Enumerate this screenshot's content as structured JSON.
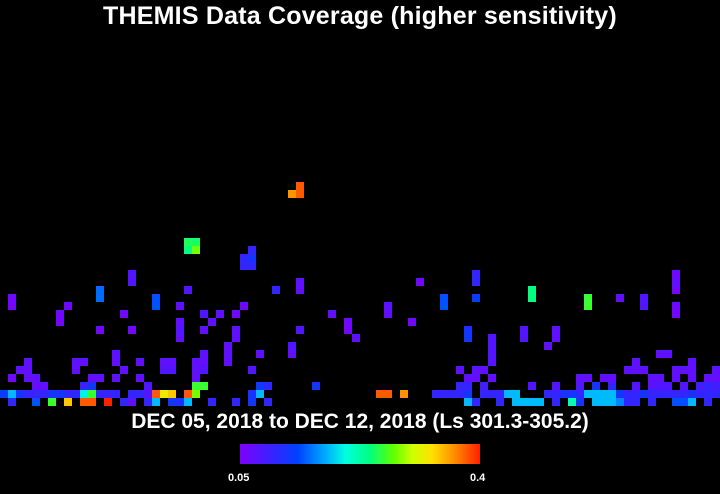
{
  "title": "THEMIS Data Coverage (higher sensitivity)",
  "subtitle": "DEC 05, 2018 to DEC 12, 2018 (Ls 301.3-305.2)",
  "colorbar": {
    "min_label": "0.05",
    "max_label": "0.4",
    "min": 0.05,
    "max": 0.4
  },
  "chart_data": {
    "type": "heatmap",
    "title": "THEMIS Data Coverage (higher sensitivity)",
    "subtitle": "DEC 05, 2018 to DEC 12, 2018 (Ls 301.3-305.2)",
    "value_range": [
      0.05,
      0.4
    ],
    "grid": {
      "cols": 90,
      "rows": 50
    },
    "cells": [
      [
        36,
        23,
        0.36
      ],
      [
        37,
        22,
        0.38
      ],
      [
        37,
        23,
        0.38
      ],
      [
        23,
        29,
        0.25
      ],
      [
        24,
        29,
        0.25
      ],
      [
        23,
        30,
        0.24
      ],
      [
        24,
        30,
        0.28
      ],
      [
        31,
        30,
        0.1
      ],
      [
        30,
        31,
        0.1
      ],
      [
        31,
        31,
        0.12
      ],
      [
        30,
        32,
        0.1
      ],
      [
        31,
        32,
        0.1
      ],
      [
        16,
        33,
        0.08
      ],
      [
        59,
        33,
        0.1
      ],
      [
        84,
        33,
        0.06
      ],
      [
        16,
        34,
        0.08
      ],
      [
        59,
        34,
        0.1
      ],
      [
        84,
        34,
        0.07
      ],
      [
        34,
        35,
        0.1
      ],
      [
        52,
        34,
        0.06
      ],
      [
        37,
        34,
        0.07
      ],
      [
        37,
        35,
        0.07
      ],
      [
        12,
        35,
        0.15
      ],
      [
        23,
        35,
        0.08
      ],
      [
        66,
        35,
        0.24
      ],
      [
        84,
        35,
        0.06
      ],
      [
        1,
        36,
        0.06
      ],
      [
        12,
        36,
        0.15
      ],
      [
        19,
        36,
        0.14
      ],
      [
        55,
        36,
        0.14
      ],
      [
        59,
        36,
        0.13
      ],
      [
        66,
        36,
        0.24
      ],
      [
        73,
        36,
        0.26
      ],
      [
        77,
        36,
        0.07
      ],
      [
        80,
        36,
        0.08
      ],
      [
        1,
        37,
        0.06
      ],
      [
        8,
        37,
        0.06
      ],
      [
        19,
        37,
        0.14
      ],
      [
        22,
        37,
        0.07
      ],
      [
        30,
        37,
        0.06
      ],
      [
        48,
        37,
        0.07
      ],
      [
        55,
        37,
        0.14
      ],
      [
        73,
        37,
        0.26
      ],
      [
        80,
        37,
        0.08
      ],
      [
        84,
        37,
        0.06
      ],
      [
        7,
        38,
        0.06
      ],
      [
        15,
        38,
        0.06
      ],
      [
        25,
        38,
        0.08
      ],
      [
        27,
        38,
        0.07
      ],
      [
        29,
        38,
        0.06
      ],
      [
        41,
        38,
        0.07
      ],
      [
        48,
        38,
        0.07
      ],
      [
        84,
        38,
        0.06
      ],
      [
        7,
        39,
        0.06
      ],
      [
        22,
        39,
        0.07
      ],
      [
        26,
        39,
        0.07
      ],
      [
        43,
        39,
        0.06
      ],
      [
        51,
        39,
        0.06
      ],
      [
        12,
        40,
        0.06
      ],
      [
        16,
        40,
        0.06
      ],
      [
        22,
        40,
        0.08
      ],
      [
        25,
        40,
        0.07
      ],
      [
        29,
        40,
        0.07
      ],
      [
        37,
        40,
        0.08
      ],
      [
        43,
        40,
        0.06
      ],
      [
        58,
        40,
        0.12
      ],
      [
        65,
        40,
        0.08
      ],
      [
        69,
        40,
        0.07
      ],
      [
        22,
        41,
        0.07
      ],
      [
        29,
        41,
        0.07
      ],
      [
        44,
        41,
        0.07
      ],
      [
        58,
        41,
        0.12
      ],
      [
        61,
        41,
        0.08
      ],
      [
        65,
        41,
        0.08
      ],
      [
        69,
        41,
        0.07
      ],
      [
        28,
        42,
        0.07
      ],
      [
        36,
        42,
        0.08
      ],
      [
        61,
        42,
        0.08
      ],
      [
        68,
        42,
        0.07
      ],
      [
        14,
        43,
        0.07
      ],
      [
        25,
        43,
        0.07
      ],
      [
        28,
        43,
        0.07
      ],
      [
        32,
        43,
        0.07
      ],
      [
        36,
        43,
        0.07
      ],
      [
        61,
        43,
        0.08
      ],
      [
        82,
        43,
        0.07
      ],
      [
        83,
        43,
        0.07
      ],
      [
        3,
        44,
        0.07
      ],
      [
        9,
        44,
        0.07
      ],
      [
        10,
        44,
        0.07
      ],
      [
        14,
        44,
        0.07
      ],
      [
        17,
        44,
        0.07
      ],
      [
        20,
        44,
        0.07
      ],
      [
        21,
        44,
        0.07
      ],
      [
        24,
        44,
        0.07
      ],
      [
        25,
        44,
        0.07
      ],
      [
        28,
        44,
        0.07
      ],
      [
        61,
        44,
        0.08
      ],
      [
        79,
        44,
        0.07
      ],
      [
        86,
        44,
        0.07
      ],
      [
        2,
        45,
        0.07
      ],
      [
        3,
        45,
        0.07
      ],
      [
        9,
        45,
        0.07
      ],
      [
        15,
        45,
        0.07
      ],
      [
        20,
        45,
        0.08
      ],
      [
        21,
        45,
        0.08
      ],
      [
        24,
        45,
        0.07
      ],
      [
        25,
        45,
        0.08
      ],
      [
        31,
        45,
        0.08
      ],
      [
        57,
        45,
        0.07
      ],
      [
        59,
        45,
        0.07
      ],
      [
        60,
        45,
        0.07
      ],
      [
        78,
        45,
        0.07
      ],
      [
        79,
        45,
        0.07
      ],
      [
        80,
        45,
        0.07
      ],
      [
        84,
        45,
        0.07
      ],
      [
        85,
        45,
        0.07
      ],
      [
        86,
        45,
        0.07
      ],
      [
        89,
        45,
        0.07
      ],
      [
        1,
        46,
        0.06
      ],
      [
        3,
        46,
        0.07
      ],
      [
        4,
        46,
        0.07
      ],
      [
        11,
        46,
        0.07
      ],
      [
        12,
        46,
        0.07
      ],
      [
        14,
        46,
        0.07
      ],
      [
        17,
        46,
        0.07
      ],
      [
        24,
        46,
        0.07
      ],
      [
        58,
        46,
        0.07
      ],
      [
        59,
        46,
        0.07
      ],
      [
        61,
        46,
        0.07
      ],
      [
        72,
        46,
        0.07
      ],
      [
        73,
        46,
        0.07
      ],
      [
        75,
        46,
        0.07
      ],
      [
        76,
        46,
        0.07
      ],
      [
        81,
        46,
        0.07
      ],
      [
        82,
        46,
        0.07
      ],
      [
        84,
        46,
        0.07
      ],
      [
        86,
        46,
        0.07
      ],
      [
        88,
        46,
        0.07
      ],
      [
        89,
        46,
        0.07
      ],
      [
        4,
        47,
        0.07
      ],
      [
        5,
        47,
        0.07
      ],
      [
        10,
        47,
        0.1
      ],
      [
        11,
        47,
        0.12
      ],
      [
        18,
        47,
        0.08
      ],
      [
        24,
        47,
        0.26
      ],
      [
        25,
        47,
        0.26
      ],
      [
        32,
        47,
        0.13
      ],
      [
        33,
        47,
        0.1
      ],
      [
        39,
        47,
        0.12
      ],
      [
        57,
        47,
        0.1
      ],
      [
        58,
        47,
        0.1
      ],
      [
        60,
        47,
        0.09
      ],
      [
        66,
        47,
        0.08
      ],
      [
        69,
        47,
        0.08
      ],
      [
        72,
        47,
        0.08
      ],
      [
        74,
        47,
        0.12
      ],
      [
        76,
        47,
        0.1
      ],
      [
        79,
        47,
        0.08
      ],
      [
        81,
        47,
        0.08
      ],
      [
        82,
        47,
        0.08
      ],
      [
        83,
        47,
        0.08
      ],
      [
        85,
        47,
        0.08
      ],
      [
        87,
        47,
        0.09
      ],
      [
        88,
        47,
        0.1
      ],
      [
        89,
        47,
        0.09
      ],
      [
        0,
        48,
        0.13
      ],
      [
        1,
        48,
        0.18
      ],
      [
        2,
        48,
        0.12
      ],
      [
        3,
        48,
        0.1
      ],
      [
        4,
        48,
        0.1
      ],
      [
        5,
        48,
        0.1
      ],
      [
        6,
        48,
        0.12
      ],
      [
        7,
        48,
        0.12
      ],
      [
        8,
        48,
        0.1
      ],
      [
        9,
        48,
        0.1
      ],
      [
        10,
        48,
        0.2
      ],
      [
        11,
        48,
        0.26
      ],
      [
        12,
        48,
        0.1
      ],
      [
        13,
        48,
        0.1
      ],
      [
        14,
        48,
        0.1
      ],
      [
        16,
        48,
        0.1
      ],
      [
        17,
        48,
        0.1
      ],
      [
        18,
        48,
        0.08
      ],
      [
        19,
        48,
        0.38
      ],
      [
        20,
        48,
        0.32
      ],
      [
        21,
        48,
        0.34
      ],
      [
        23,
        48,
        0.38
      ],
      [
        24,
        48,
        0.28
      ],
      [
        31,
        48,
        0.12
      ],
      [
        32,
        48,
        0.18
      ],
      [
        47,
        48,
        0.38
      ],
      [
        48,
        48,
        0.38
      ],
      [
        50,
        48,
        0.36
      ],
      [
        54,
        48,
        0.1
      ],
      [
        55,
        48,
        0.1
      ],
      [
        56,
        48,
        0.1
      ],
      [
        57,
        48,
        0.1
      ],
      [
        58,
        48,
        0.12
      ],
      [
        60,
        48,
        0.1
      ],
      [
        61,
        48,
        0.1
      ],
      [
        62,
        48,
        0.1
      ],
      [
        63,
        48,
        0.18
      ],
      [
        64,
        48,
        0.18
      ],
      [
        68,
        48,
        0.1
      ],
      [
        69,
        48,
        0.1
      ],
      [
        70,
        48,
        0.12
      ],
      [
        71,
        48,
        0.12
      ],
      [
        72,
        48,
        0.1
      ],
      [
        73,
        48,
        0.18
      ],
      [
        74,
        48,
        0.18
      ],
      [
        75,
        48,
        0.18
      ],
      [
        76,
        48,
        0.18
      ],
      [
        77,
        48,
        0.12
      ],
      [
        78,
        48,
        0.1
      ],
      [
        79,
        48,
        0.1
      ],
      [
        80,
        48,
        0.12
      ],
      [
        81,
        48,
        0.1
      ],
      [
        82,
        48,
        0.1
      ],
      [
        83,
        48,
        0.1
      ],
      [
        84,
        48,
        0.1
      ],
      [
        85,
        48,
        0.1
      ],
      [
        86,
        48,
        0.12
      ],
      [
        87,
        48,
        0.1
      ],
      [
        88,
        48,
        0.1
      ],
      [
        89,
        48,
        0.1
      ],
      [
        1,
        49,
        0.1
      ],
      [
        4,
        49,
        0.14
      ],
      [
        6,
        49,
        0.26
      ],
      [
        8,
        49,
        0.34
      ],
      [
        10,
        49,
        0.38
      ],
      [
        11,
        49,
        0.38
      ],
      [
        13,
        49,
        0.4
      ],
      [
        15,
        49,
        0.1
      ],
      [
        16,
        49,
        0.07
      ],
      [
        18,
        49,
        0.1
      ],
      [
        19,
        49,
        0.18
      ],
      [
        21,
        49,
        0.12
      ],
      [
        22,
        49,
        0.12
      ],
      [
        23,
        49,
        0.18
      ],
      [
        26,
        49,
        0.1
      ],
      [
        29,
        49,
        0.1
      ],
      [
        31,
        49,
        0.12
      ],
      [
        33,
        49,
        0.1
      ],
      [
        58,
        49,
        0.18
      ],
      [
        59,
        49,
        0.1
      ],
      [
        62,
        49,
        0.1
      ],
      [
        64,
        49,
        0.18
      ],
      [
        65,
        49,
        0.18
      ],
      [
        66,
        49,
        0.18
      ],
      [
        67,
        49,
        0.18
      ],
      [
        69,
        49,
        0.1
      ],
      [
        71,
        49,
        0.22
      ],
      [
        72,
        49,
        0.12
      ],
      [
        74,
        49,
        0.18
      ],
      [
        75,
        49,
        0.18
      ],
      [
        76,
        49,
        0.18
      ],
      [
        77,
        49,
        0.16
      ],
      [
        78,
        49,
        0.1
      ],
      [
        79,
        49,
        0.1
      ],
      [
        81,
        49,
        0.1
      ],
      [
        84,
        49,
        0.14
      ],
      [
        85,
        49,
        0.14
      ],
      [
        86,
        49,
        0.18
      ],
      [
        88,
        49,
        0.1
      ]
    ]
  }
}
